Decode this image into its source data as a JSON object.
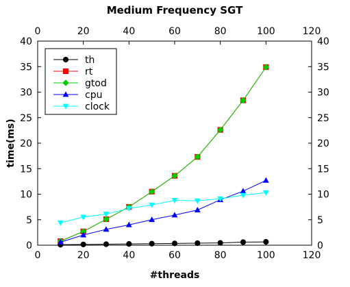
{
  "chart_data": {
    "type": "line",
    "title": "Medium Frequency SGT",
    "xlabel": "#threads",
    "ylabel": "time(ms)",
    "xlim": [
      0,
      120
    ],
    "ylim": [
      0,
      40
    ],
    "x_ticks": [
      "0",
      "20",
      "40",
      "60",
      "80",
      "100",
      "120"
    ],
    "y_ticks": [
      "0",
      "5",
      "10",
      "15",
      "20",
      "25",
      "30",
      "35",
      "40"
    ],
    "grid": false,
    "legend_position": "top-left",
    "x": [
      10,
      20,
      30,
      40,
      50,
      60,
      70,
      80,
      90,
      100
    ],
    "series": [
      {
        "name": "th",
        "color": "#000000",
        "marker": "circle",
        "values": [
          0.1,
          0.15,
          0.2,
          0.25,
          0.3,
          0.35,
          0.4,
          0.45,
          0.6,
          0.65
        ]
      },
      {
        "name": "rt",
        "color": "#ff0000",
        "marker": "square",
        "values": [
          0.8,
          2.7,
          5.1,
          7.5,
          10.5,
          13.6,
          17.3,
          22.6,
          28.4,
          34.9
        ]
      },
      {
        "name": "gtod",
        "color": "#00cc00",
        "marker": "diamond",
        "values": [
          0.8,
          2.7,
          5.1,
          7.5,
          10.5,
          13.6,
          17.3,
          22.6,
          28.4,
          34.9
        ]
      },
      {
        "name": "cpu",
        "color": "#0000ff",
        "marker": "triangle-up",
        "values": [
          0.6,
          2.0,
          3.1,
          4.0,
          5.0,
          5.9,
          6.9,
          8.9,
          10.6,
          12.7
        ]
      },
      {
        "name": "clock",
        "color": "#00ffff",
        "marker": "triangle-down",
        "values": [
          4.4,
          5.5,
          6.1,
          7.2,
          7.9,
          8.8,
          8.7,
          9.1,
          9.8,
          10.3
        ]
      }
    ]
  }
}
